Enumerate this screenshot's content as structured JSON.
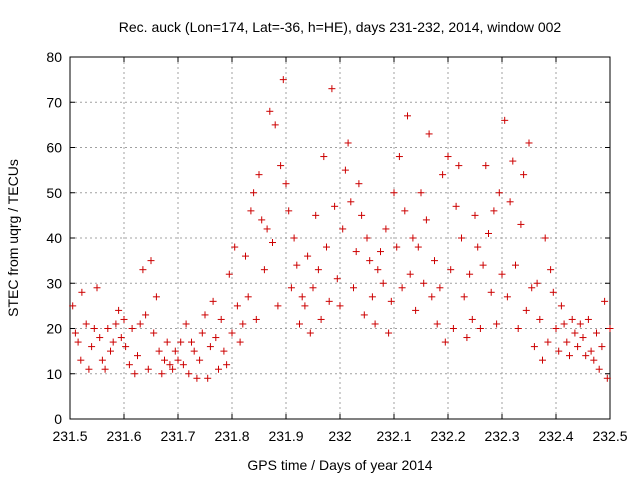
{
  "chart_data": {
    "type": "scatter",
    "title": "Rec. auck (Lon=174, Lat=-36, h=HE), days 231-232, 2014, window 002",
    "xlabel": "GPS time / Days of year 2014",
    "ylabel": "STEC from uqrg / TECUs",
    "xlim": [
      231.5,
      232.5
    ],
    "ylim": [
      0,
      80
    ],
    "xticks": [
      231.5,
      231.6,
      231.7,
      231.8,
      231.9,
      232.0,
      232.1,
      232.2,
      232.3,
      232.4,
      232.5
    ],
    "xtick_labels": [
      "231.5",
      "231.6",
      "231.7",
      "231.8",
      "231.9",
      "232",
      "232.1",
      "232.2",
      "232.3",
      "232.4",
      "232.5"
    ],
    "yticks": [
      0,
      10,
      20,
      30,
      40,
      50,
      60,
      70,
      80
    ],
    "ytick_labels": [
      "0",
      "10",
      "20",
      "30",
      "40",
      "50",
      "60",
      "70",
      "80"
    ],
    "grid": true,
    "marker": "+",
    "color": "#cc0000",
    "points": [
      [
        231.505,
        25
      ],
      [
        231.51,
        19
      ],
      [
        231.515,
        17
      ],
      [
        231.52,
        13
      ],
      [
        231.522,
        28
      ],
      [
        231.53,
        21
      ],
      [
        231.535,
        11
      ],
      [
        231.54,
        16
      ],
      [
        231.545,
        20
      ],
      [
        231.55,
        29
      ],
      [
        231.555,
        18
      ],
      [
        231.56,
        13
      ],
      [
        231.565,
        11
      ],
      [
        231.57,
        20
      ],
      [
        231.575,
        15
      ],
      [
        231.58,
        17
      ],
      [
        231.585,
        21
      ],
      [
        231.59,
        24
      ],
      [
        231.595,
        18
      ],
      [
        231.6,
        22
      ],
      [
        231.603,
        16
      ],
      [
        231.61,
        12
      ],
      [
        231.615,
        20
      ],
      [
        231.62,
        10
      ],
      [
        231.625,
        14
      ],
      [
        231.63,
        21
      ],
      [
        231.635,
        33
      ],
      [
        231.64,
        23
      ],
      [
        231.645,
        11
      ],
      [
        231.65,
        35
      ],
      [
        231.655,
        19
      ],
      [
        231.66,
        27
      ],
      [
        231.665,
        15
      ],
      [
        231.67,
        10
      ],
      [
        231.675,
        13
      ],
      [
        231.68,
        17
      ],
      [
        231.685,
        12
      ],
      [
        231.69,
        11
      ],
      [
        231.695,
        15
      ],
      [
        231.7,
        13
      ],
      [
        231.705,
        17
      ],
      [
        231.71,
        12
      ],
      [
        231.715,
        21
      ],
      [
        231.72,
        10
      ],
      [
        231.725,
        17
      ],
      [
        231.73,
        15
      ],
      [
        231.735,
        9
      ],
      [
        231.74,
        13
      ],
      [
        231.745,
        19
      ],
      [
        231.75,
        23
      ],
      [
        231.755,
        9
      ],
      [
        231.76,
        16
      ],
      [
        231.765,
        26
      ],
      [
        231.77,
        18
      ],
      [
        231.775,
        11
      ],
      [
        231.78,
        22
      ],
      [
        231.785,
        15
      ],
      [
        231.79,
        12
      ],
      [
        231.795,
        32
      ],
      [
        231.8,
        19
      ],
      [
        231.805,
        38
      ],
      [
        231.81,
        25
      ],
      [
        231.815,
        17
      ],
      [
        231.82,
        21
      ],
      [
        231.825,
        36
      ],
      [
        231.83,
        27
      ],
      [
        231.835,
        46
      ],
      [
        231.84,
        50
      ],
      [
        231.845,
        22
      ],
      [
        231.85,
        54
      ],
      [
        231.855,
        44
      ],
      [
        231.86,
        33
      ],
      [
        231.865,
        42
      ],
      [
        231.87,
        68
      ],
      [
        231.875,
        39
      ],
      [
        231.88,
        65
      ],
      [
        231.885,
        25
      ],
      [
        231.89,
        56
      ],
      [
        231.895,
        75
      ],
      [
        231.9,
        52
      ],
      [
        231.905,
        46
      ],
      [
        231.91,
        29
      ],
      [
        231.915,
        40
      ],
      [
        231.92,
        34
      ],
      [
        231.925,
        21
      ],
      [
        231.93,
        27
      ],
      [
        231.935,
        25
      ],
      [
        231.94,
        36
      ],
      [
        231.945,
        19
      ],
      [
        231.95,
        29
      ],
      [
        231.955,
        45
      ],
      [
        231.96,
        33
      ],
      [
        231.965,
        22
      ],
      [
        231.97,
        58
      ],
      [
        231.975,
        38
      ],
      [
        231.98,
        26
      ],
      [
        231.985,
        73
      ],
      [
        231.99,
        47
      ],
      [
        231.995,
        31
      ],
      [
        232.0,
        25
      ],
      [
        232.005,
        42
      ],
      [
        232.01,
        55
      ],
      [
        232.015,
        61
      ],
      [
        232.02,
        48
      ],
      [
        232.025,
        29
      ],
      [
        232.03,
        37
      ],
      [
        232.035,
        52
      ],
      [
        232.04,
        45
      ],
      [
        232.045,
        23
      ],
      [
        232.05,
        40
      ],
      [
        232.055,
        35
      ],
      [
        232.06,
        27
      ],
      [
        232.065,
        21
      ],
      [
        232.07,
        33
      ],
      [
        232.075,
        37
      ],
      [
        232.08,
        30
      ],
      [
        232.085,
        42
      ],
      [
        232.09,
        19
      ],
      [
        232.095,
        26
      ],
      [
        232.1,
        50
      ],
      [
        232.105,
        38
      ],
      [
        232.11,
        58
      ],
      [
        232.115,
        29
      ],
      [
        232.12,
        46
      ],
      [
        232.125,
        67
      ],
      [
        232.13,
        32
      ],
      [
        232.135,
        40
      ],
      [
        232.14,
        24
      ],
      [
        232.145,
        38
      ],
      [
        232.15,
        50
      ],
      [
        232.155,
        30
      ],
      [
        232.16,
        44
      ],
      [
        232.165,
        63
      ],
      [
        232.17,
        27
      ],
      [
        232.175,
        35
      ],
      [
        232.18,
        21
      ],
      [
        232.185,
        29
      ],
      [
        232.19,
        54
      ],
      [
        232.195,
        17
      ],
      [
        232.2,
        58
      ],
      [
        232.205,
        33
      ],
      [
        232.21,
        20
      ],
      [
        232.215,
        47
      ],
      [
        232.22,
        56
      ],
      [
        232.225,
        40
      ],
      [
        232.23,
        27
      ],
      [
        232.235,
        18
      ],
      [
        232.24,
        32
      ],
      [
        232.245,
        22
      ],
      [
        232.25,
        45
      ],
      [
        232.255,
        38
      ],
      [
        232.26,
        20
      ],
      [
        232.265,
        34
      ],
      [
        232.27,
        56
      ],
      [
        232.275,
        41
      ],
      [
        232.28,
        28
      ],
      [
        232.285,
        46
      ],
      [
        232.29,
        21
      ],
      [
        232.295,
        50
      ],
      [
        232.3,
        32
      ],
      [
        232.305,
        66
      ],
      [
        232.31,
        27
      ],
      [
        232.315,
        48
      ],
      [
        232.32,
        57
      ],
      [
        232.325,
        34
      ],
      [
        232.33,
        20
      ],
      [
        232.335,
        43
      ],
      [
        232.34,
        54
      ],
      [
        232.345,
        24
      ],
      [
        232.35,
        61
      ],
      [
        232.355,
        29
      ],
      [
        232.36,
        16
      ],
      [
        232.365,
        30
      ],
      [
        232.37,
        22
      ],
      [
        232.375,
        13
      ],
      [
        232.38,
        40
      ],
      [
        232.385,
        17
      ],
      [
        232.39,
        33
      ],
      [
        232.395,
        28
      ],
      [
        232.4,
        20
      ],
      [
        232.405,
        15
      ],
      [
        232.41,
        25
      ],
      [
        232.415,
        21
      ],
      [
        232.42,
        17
      ],
      [
        232.425,
        14
      ],
      [
        232.43,
        22
      ],
      [
        232.435,
        19
      ],
      [
        232.44,
        16
      ],
      [
        232.445,
        21
      ],
      [
        232.45,
        18
      ],
      [
        232.455,
        14
      ],
      [
        232.46,
        22
      ],
      [
        232.465,
        15
      ],
      [
        232.47,
        13
      ],
      [
        232.475,
        19
      ],
      [
        232.48,
        11
      ],
      [
        232.485,
        16
      ],
      [
        232.49,
        26
      ],
      [
        232.495,
        9
      ],
      [
        232.5,
        20
      ]
    ]
  }
}
